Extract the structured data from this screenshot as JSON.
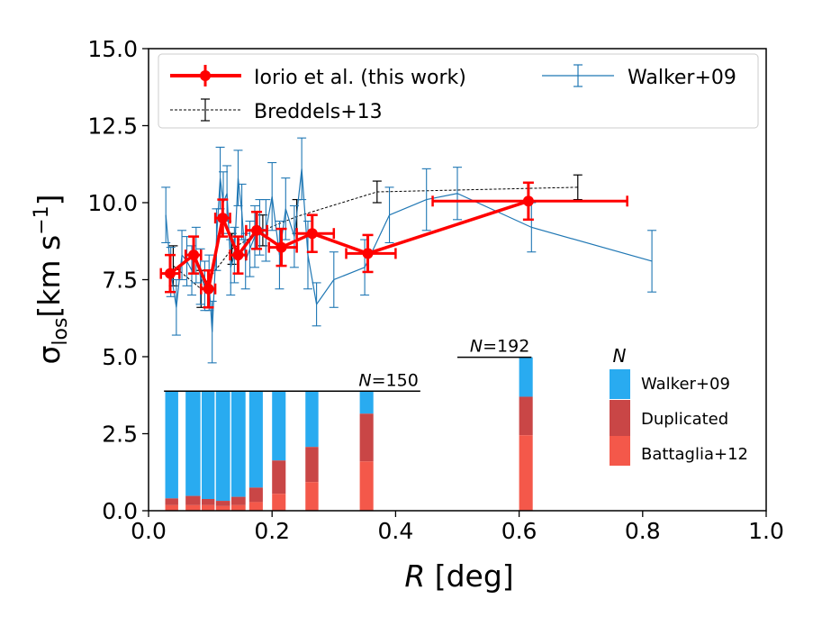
{
  "chart_data": {
    "type": "scatter",
    "xlabel": "R [deg]",
    "xlabel_italic": "R",
    "xlabel_rest": " [deg]",
    "ylabel_sigma": "σ",
    "ylabel_sub": "los",
    "ylabel_units": "[km s",
    "ylabel_exp": "−1",
    "ylabel_close": "]",
    "xlim": [
      0.0,
      1.0
    ],
    "ylim": [
      0.0,
      15.0
    ],
    "xticks": [
      "0.0",
      "0.2",
      "0.4",
      "0.6",
      "0.8",
      "1.0"
    ],
    "xtick_values": [
      0.0,
      0.2,
      0.4,
      0.6,
      0.8,
      1.0
    ],
    "yticks": [
      "0.0",
      "2.5",
      "5.0",
      "7.5",
      "10.0",
      "12.5",
      "15.0"
    ],
    "ytick_values": [
      0.0,
      2.5,
      5.0,
      7.5,
      10.0,
      12.5,
      15.0
    ],
    "legend": {
      "position": "top",
      "entries": [
        "Iorio et al. (this work)",
        "Walker+09",
        "Breddels+13"
      ]
    },
    "colors": {
      "iorio": "#ff0000",
      "walker": "#1f77b4",
      "breddels": "#000000",
      "hist_walker": "#29abf0",
      "hist_duplicated": "#c94646",
      "hist_battaglia": "#f4584a"
    },
    "series": [
      {
        "name": "Iorio et al. (this work)",
        "points": [
          {
            "x": 0.035,
            "y": 7.7,
            "xerr": [
              0.02,
              0.05
            ],
            "yerr": 0.6
          },
          {
            "x": 0.073,
            "y": 8.3,
            "xerr": [
              0.06,
              0.085
            ],
            "yerr": 0.6
          },
          {
            "x": 0.097,
            "y": 7.2,
            "xerr": [
              0.085,
              0.108
            ],
            "yerr": 0.6
          },
          {
            "x": 0.12,
            "y": 9.5,
            "xerr": [
              0.108,
              0.132
            ],
            "yerr": 0.6
          },
          {
            "x": 0.145,
            "y": 8.3,
            "xerr": [
              0.132,
              0.158
            ],
            "yerr": 0.6
          },
          {
            "x": 0.175,
            "y": 9.1,
            "xerr": [
              0.158,
              0.192
            ],
            "yerr": 0.6
          },
          {
            "x": 0.215,
            "y": 8.55,
            "xerr": [
              0.195,
              0.24
            ],
            "yerr": 0.6
          },
          {
            "x": 0.265,
            "y": 9.0,
            "xerr": [
              0.24,
              0.3
            ],
            "yerr": 0.6
          },
          {
            "x": 0.355,
            "y": 8.35,
            "xerr": [
              0.32,
              0.4
            ],
            "yerr": 0.6
          },
          {
            "x": 0.615,
            "y": 10.05,
            "xerr": [
              0.46,
              0.775
            ],
            "yerr": 0.6
          }
        ]
      },
      {
        "name": "Walker+09",
        "points": [
          {
            "x": 0.028,
            "y": 9.6,
            "yerr": 0.9
          },
          {
            "x": 0.036,
            "y": 7.75,
            "yerr": 0.8
          },
          {
            "x": 0.045,
            "y": 6.6,
            "yerr": 0.9
          },
          {
            "x": 0.054,
            "y": 8.3,
            "yerr": 0.8
          },
          {
            "x": 0.062,
            "y": 8.1,
            "yerr": 0.8
          },
          {
            "x": 0.07,
            "y": 7.8,
            "yerr": 0.8
          },
          {
            "x": 0.077,
            "y": 8.3,
            "yerr": 0.9
          },
          {
            "x": 0.084,
            "y": 7.6,
            "yerr": 0.9
          },
          {
            "x": 0.091,
            "y": 7.3,
            "yerr": 0.8
          },
          {
            "x": 0.098,
            "y": 7.4,
            "yerr": 0.9
          },
          {
            "x": 0.103,
            "y": 5.8,
            "yerr": 1.0
          },
          {
            "x": 0.11,
            "y": 8.8,
            "yerr": 1.0
          },
          {
            "x": 0.116,
            "y": 10.8,
            "yerr": 1.0
          },
          {
            "x": 0.121,
            "y": 10.0,
            "yerr": 1.0
          },
          {
            "x": 0.127,
            "y": 10.3,
            "yerr": 0.9
          },
          {
            "x": 0.133,
            "y": 7.9,
            "yerr": 0.9
          },
          {
            "x": 0.139,
            "y": 8.3,
            "yerr": 0.9
          },
          {
            "x": 0.145,
            "y": 10.8,
            "yerr": 0.9
          },
          {
            "x": 0.151,
            "y": 9.7,
            "yerr": 0.9
          },
          {
            "x": 0.157,
            "y": 8.1,
            "yerr": 0.9
          },
          {
            "x": 0.164,
            "y": 8.5,
            "yerr": 0.9
          },
          {
            "x": 0.172,
            "y": 8.9,
            "yerr": 1.0
          },
          {
            "x": 0.18,
            "y": 9.2,
            "yerr": 0.9
          },
          {
            "x": 0.19,
            "y": 9.1,
            "yerr": 1.0
          },
          {
            "x": 0.2,
            "y": 10.2,
            "yerr": 1.1
          },
          {
            "x": 0.212,
            "y": 8.3,
            "yerr": 1.1
          },
          {
            "x": 0.222,
            "y": 9.8,
            "yerr": 1.0
          },
          {
            "x": 0.236,
            "y": 8.9,
            "yerr": 1.0
          },
          {
            "x": 0.248,
            "y": 11.1,
            "yerr": 1.0
          },
          {
            "x": 0.258,
            "y": 8.3,
            "yerr": 1.1
          },
          {
            "x": 0.272,
            "y": 6.7,
            "yerr": 0.7
          },
          {
            "x": 0.3,
            "y": 7.5,
            "yerr": 0.9
          },
          {
            "x": 0.35,
            "y": 7.9,
            "yerr": 0.9
          },
          {
            "x": 0.39,
            "y": 9.6,
            "yerr": 0.9
          },
          {
            "x": 0.45,
            "y": 10.1,
            "yerr": 1.0
          },
          {
            "x": 0.5,
            "y": 10.3,
            "yerr": 0.85
          },
          {
            "x": 0.62,
            "y": 9.2,
            "yerr": 0.8
          },
          {
            "x": 0.815,
            "y": 8.1,
            "yerr": 1.0
          }
        ]
      },
      {
        "name": "Breddels+13",
        "points": [
          {
            "x": 0.04,
            "y": 7.95,
            "yerr": 0.65
          },
          {
            "x": 0.085,
            "y": 7.2,
            "yerr": 0.6
          },
          {
            "x": 0.135,
            "y": 8.5,
            "yerr": 0.5
          },
          {
            "x": 0.185,
            "y": 9.1,
            "yerr": 0.5
          },
          {
            "x": 0.24,
            "y": 9.55,
            "yerr": 0.55
          },
          {
            "x": 0.37,
            "y": 10.35,
            "yerr": 0.35
          },
          {
            "x": 0.695,
            "y": 10.5,
            "yerr": 0.4
          }
        ]
      }
    ],
    "histogram": {
      "legend_title": "N",
      "legend_entries": [
        "Walker+09",
        "Duplicated",
        "Battaglia+12"
      ],
      "totals": [
        {
          "label_prefix": "N",
          "label_value": "=150",
          "x0": 0.025,
          "x1": 0.44,
          "y": 3.88
        },
        {
          "label_prefix": "N",
          "label_value": "=192",
          "x0": 0.5,
          "x1": 0.62,
          "y": 4.98
        }
      ],
      "bins": [
        {
          "x0": 0.027,
          "x1": 0.048,
          "battaglia": 0.18,
          "duplicated": 0.4,
          "walker": 3.88
        },
        {
          "x0": 0.06,
          "x1": 0.084,
          "battaglia": 0.18,
          "duplicated": 0.48,
          "walker": 3.88
        },
        {
          "x0": 0.086,
          "x1": 0.107,
          "battaglia": 0.18,
          "duplicated": 0.38,
          "walker": 3.88
        },
        {
          "x0": 0.109,
          "x1": 0.132,
          "battaglia": 0.15,
          "duplicated": 0.32,
          "walker": 3.88
        },
        {
          "x0": 0.134,
          "x1": 0.157,
          "battaglia": 0.18,
          "duplicated": 0.45,
          "walker": 3.88
        },
        {
          "x0": 0.163,
          "x1": 0.185,
          "battaglia": 0.28,
          "duplicated": 0.75,
          "walker": 3.88
        },
        {
          "x0": 0.2,
          "x1": 0.222,
          "battaglia": 0.55,
          "duplicated": 1.63,
          "walker": 3.88
        },
        {
          "x0": 0.254,
          "x1": 0.275,
          "battaglia": 0.93,
          "duplicated": 2.07,
          "walker": 3.88
        },
        {
          "x0": 0.342,
          "x1": 0.364,
          "battaglia": 1.6,
          "duplicated": 3.15,
          "walker": 3.88
        },
        {
          "x0": 0.6,
          "x1": 0.622,
          "battaglia": 2.45,
          "duplicated": 3.7,
          "walker": 4.98
        }
      ]
    }
  }
}
